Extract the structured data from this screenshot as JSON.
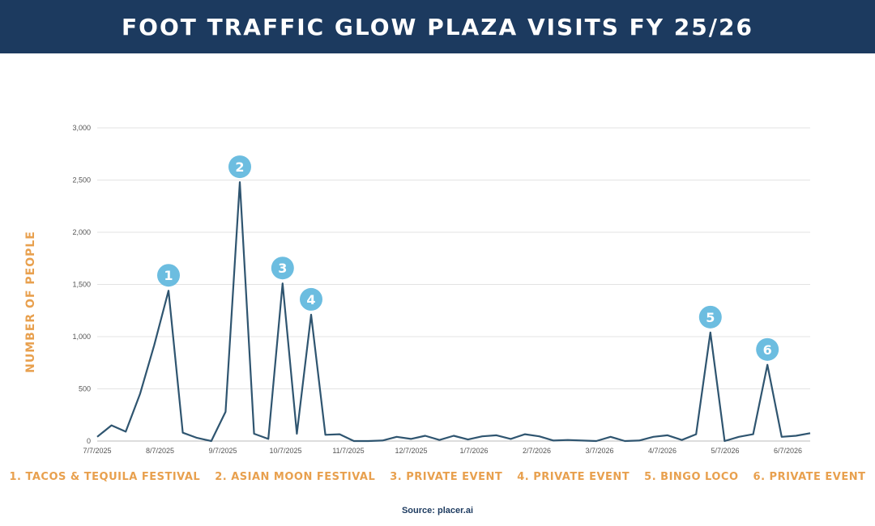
{
  "header": {
    "title": "FOOT TRAFFIC GLOW PLAZA VISITS FY 25/26"
  },
  "chart_data": {
    "type": "line",
    "title": "FOOT TRAFFIC GLOW PLAZA VISITS FY 25/26",
    "ylabel": "NUMBER OF PEOPLE",
    "xlabel": "",
    "ylim": [
      0,
      3000
    ],
    "yticks": [
      0,
      500,
      1000,
      1500,
      2000,
      2500,
      3000
    ],
    "ytick_labels": [
      "0",
      "500",
      "1,000",
      "1,500",
      "2,000",
      "2,500",
      "3,000"
    ],
    "xtick_labels": [
      "7/7/2025",
      "8/7/2025",
      "9/7/2025",
      "10/7/2025",
      "11/7/2025",
      "12/7/2025",
      "1/7/2026",
      "2/7/2026",
      "3/7/2026",
      "4/7/2026",
      "5/7/2026",
      "6/7/2026"
    ],
    "grid": true,
    "line_color": "#2f5570",
    "marker_color": "#6cbde0",
    "series": [
      {
        "values": [
          40,
          150,
          90,
          450,
          920,
          1440,
          80,
          30,
          0,
          280,
          2480,
          70,
          20,
          1510,
          70,
          1210,
          60,
          65,
          0,
          0,
          5,
          40,
          20,
          50,
          10,
          50,
          15,
          45,
          55,
          20,
          65,
          45,
          5,
          10,
          5,
          0,
          40,
          0,
          5,
          40,
          55,
          10,
          65,
          1040,
          0,
          40,
          65,
          730,
          40,
          50,
          75
        ]
      }
    ],
    "annotations": [
      {
        "label": "1",
        "index": 5,
        "value": 1440
      },
      {
        "label": "2",
        "index": 10,
        "value": 2480
      },
      {
        "label": "3",
        "index": 13,
        "value": 1510
      },
      {
        "label": "4",
        "index": 15,
        "value": 1210
      },
      {
        "label": "5",
        "index": 43,
        "value": 1040
      },
      {
        "label": "6",
        "index": 47,
        "value": 730
      }
    ]
  },
  "legend": {
    "items": [
      "1.  TACOS & TEQUILA FESTIVAL",
      "2.  ASIAN MOON FESTIVAL",
      "3.  PRIVATE EVENT",
      "4.  PRIVATE EVENT",
      "5.  BINGO LOCO",
      "6.  PRIVATE EVENT"
    ]
  },
  "footer": {
    "source": "Source: placer.ai"
  }
}
